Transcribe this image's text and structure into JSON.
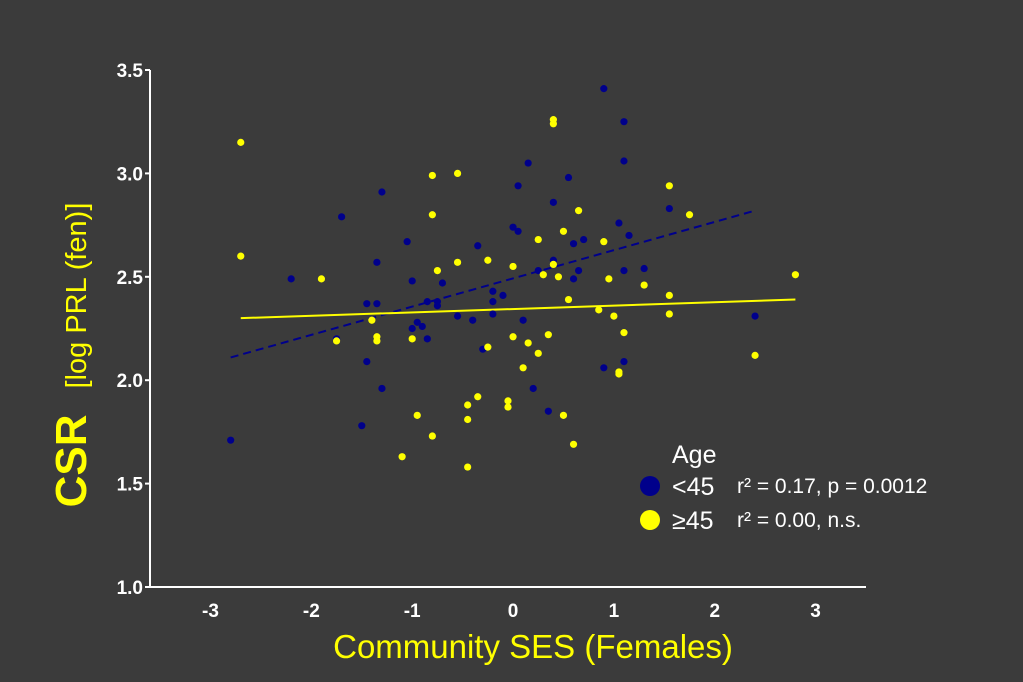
{
  "chart_data": {
    "type": "scatter",
    "xlabel": "Community SES (Females)",
    "ylabel_main": "CSR",
    "ylabel_sub": "[log PRL (fen)]",
    "xlim": [
      -3.6,
      3.5
    ],
    "ylim": [
      1.0,
      3.5
    ],
    "x_ticks": [
      -3,
      -2,
      -1,
      0,
      1,
      2,
      3
    ],
    "x_tick_labels": [
      "-3",
      "-2",
      "-1",
      "0",
      "1",
      "2",
      "3"
    ],
    "y_ticks": [
      1.0,
      1.5,
      2.0,
      2.5,
      3.0,
      3.5
    ],
    "y_tick_labels": [
      "1.0",
      "1.5",
      "2.0",
      "2.5",
      "3.0",
      "3.5"
    ],
    "grid": false,
    "legend": {
      "title": "Age",
      "placement": "bottom-right"
    },
    "series": [
      {
        "name": "<45",
        "legend_label": "<45",
        "stat": "r² = 0.17, p = 0.0012",
        "color": "#00008b",
        "fit": {
          "x": [
            -2.8,
            2.4
          ],
          "y": [
            2.11,
            2.82
          ],
          "style": "dashed"
        },
        "points": [
          [
            -2.8,
            1.71
          ],
          [
            -2.2,
            2.49
          ],
          [
            -1.7,
            2.79
          ],
          [
            -1.5,
            1.78
          ],
          [
            -1.45,
            2.37
          ],
          [
            -1.45,
            2.09
          ],
          [
            -1.35,
            2.57
          ],
          [
            -1.35,
            2.37
          ],
          [
            -1.3,
            2.91
          ],
          [
            -1.3,
            1.96
          ],
          [
            -1.05,
            2.67
          ],
          [
            -1.0,
            2.48
          ],
          [
            -1.0,
            2.25
          ],
          [
            -0.95,
            2.28
          ],
          [
            -0.9,
            2.26
          ],
          [
            -0.85,
            2.38
          ],
          [
            -0.85,
            2.2
          ],
          [
            -0.75,
            2.38
          ],
          [
            -0.75,
            2.36
          ],
          [
            -0.7,
            2.47
          ],
          [
            -0.55,
            2.31
          ],
          [
            -0.4,
            2.29
          ],
          [
            -0.35,
            2.65
          ],
          [
            -0.3,
            2.15
          ],
          [
            -0.2,
            2.43
          ],
          [
            -0.2,
            2.38
          ],
          [
            -0.2,
            2.32
          ],
          [
            -0.1,
            2.41
          ],
          [
            0.0,
            2.74
          ],
          [
            0.05,
            2.94
          ],
          [
            0.05,
            2.72
          ],
          [
            0.1,
            2.29
          ],
          [
            0.15,
            3.05
          ],
          [
            0.2,
            1.96
          ],
          [
            0.25,
            2.53
          ],
          [
            0.35,
            1.85
          ],
          [
            0.4,
            2.58
          ],
          [
            0.4,
            2.86
          ],
          [
            0.55,
            2.98
          ],
          [
            0.6,
            2.66
          ],
          [
            0.6,
            2.49
          ],
          [
            0.65,
            2.53
          ],
          [
            0.7,
            2.68
          ],
          [
            0.9,
            3.41
          ],
          [
            0.9,
            2.06
          ],
          [
            1.05,
            2.76
          ],
          [
            1.1,
            3.25
          ],
          [
            1.1,
            3.06
          ],
          [
            1.1,
            2.53
          ],
          [
            1.1,
            2.09
          ],
          [
            1.15,
            2.7
          ],
          [
            1.3,
            2.54
          ],
          [
            1.55,
            2.83
          ],
          [
            2.4,
            2.31
          ],
          [
            -1.75,
            2.2
          ]
        ]
      },
      {
        "name": "≥45",
        "legend_label": "≥45",
        "stat": "r² = 0.00, n.s.",
        "color": "#ffff00",
        "fit": {
          "x": [
            -2.7,
            2.8
          ],
          "y": [
            2.3,
            2.39
          ],
          "style": "solid"
        },
        "points": [
          [
            -2.7,
            3.15
          ],
          [
            -2.7,
            2.6
          ],
          [
            -1.9,
            2.49
          ],
          [
            -1.75,
            2.19
          ],
          [
            -1.4,
            2.29
          ],
          [
            -1.35,
            2.21
          ],
          [
            -1.35,
            2.19
          ],
          [
            -1.1,
            1.63
          ],
          [
            -1.0,
            2.2
          ],
          [
            -0.95,
            1.83
          ],
          [
            -0.8,
            2.8
          ],
          [
            -0.8,
            2.99
          ],
          [
            -0.8,
            1.73
          ],
          [
            -0.75,
            2.53
          ],
          [
            -0.55,
            3.0
          ],
          [
            -0.55,
            2.57
          ],
          [
            -0.45,
            1.88
          ],
          [
            -0.45,
            1.81
          ],
          [
            -0.45,
            1.58
          ],
          [
            -0.35,
            1.92
          ],
          [
            -0.25,
            2.58
          ],
          [
            -0.25,
            2.16
          ],
          [
            -0.05,
            1.9
          ],
          [
            -0.05,
            1.87
          ],
          [
            0.0,
            2.21
          ],
          [
            0.0,
            2.55
          ],
          [
            0.1,
            2.06
          ],
          [
            0.15,
            2.18
          ],
          [
            0.25,
            2.68
          ],
          [
            0.25,
            2.13
          ],
          [
            0.3,
            2.51
          ],
          [
            0.35,
            2.22
          ],
          [
            0.4,
            3.24
          ],
          [
            0.4,
            3.26
          ],
          [
            0.4,
            2.56
          ],
          [
            0.45,
            2.5
          ],
          [
            0.5,
            1.83
          ],
          [
            0.5,
            2.72
          ],
          [
            0.55,
            2.39
          ],
          [
            0.6,
            1.69
          ],
          [
            0.65,
            2.82
          ],
          [
            0.85,
            2.34
          ],
          [
            0.9,
            2.67
          ],
          [
            0.95,
            2.49
          ],
          [
            1.0,
            2.31
          ],
          [
            1.05,
            2.03
          ],
          [
            1.05,
            2.04
          ],
          [
            1.1,
            2.23
          ],
          [
            1.3,
            2.46
          ],
          [
            1.55,
            2.94
          ],
          [
            1.55,
            2.41
          ],
          [
            1.55,
            2.32
          ],
          [
            1.75,
            2.8
          ],
          [
            2.4,
            2.12
          ],
          [
            2.8,
            2.51
          ]
        ]
      }
    ]
  }
}
